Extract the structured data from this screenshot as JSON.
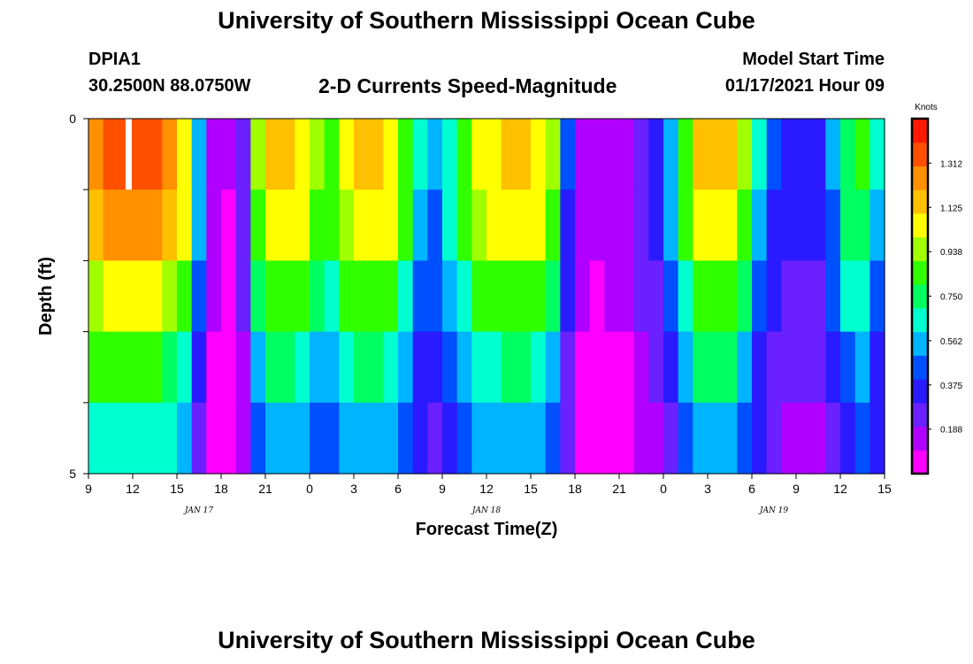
{
  "page": {
    "title_top": "University of Southern Mississippi Ocean Cube",
    "title_bottom": "University of Southern Mississippi Ocean Cube",
    "station_id": "DPIA1",
    "station_coords": "30.2500N 88.0750W",
    "plot_title": "2-D Currents Speed-Magnitude",
    "model_start_label": "Model Start Time",
    "model_start_value": "01/17/2021 Hour 09"
  },
  "colors": {
    "palette": [
      "#ff00ff",
      "#b000ff",
      "#6a20ff",
      "#2a1aff",
      "#0050ff",
      "#00b4ff",
      "#00ffd0",
      "#00ff60",
      "#30ff00",
      "#a0ff00",
      "#ffff00",
      "#ffc000",
      "#ff9000",
      "#ff5000",
      "#ff1a00"
    ]
  },
  "chart_data": {
    "type": "heatmap",
    "title": "2-D Currents Speed-Magnitude",
    "xlabel": "Forecast Time(Z)",
    "ylabel": "Depth (ft)",
    "colorbar_label": "Knots",
    "colorbar_ticks": [
      "1.312",
      "1.125",
      "0.938",
      "0.750",
      "0.562",
      "0.375",
      "0.188"
    ],
    "colorbar_tick_values": [
      1.312,
      1.125,
      0.938,
      0.75,
      0.562,
      0.375,
      0.188
    ],
    "value_range": [
      0,
      1.5
    ],
    "x_hours_range": [
      0,
      54
    ],
    "x_tick_labels": [
      "9",
      "12",
      "15",
      "18",
      "21",
      "0",
      "3",
      "6",
      "9",
      "12",
      "15",
      "18",
      "21",
      "0",
      "3",
      "6",
      "9",
      "12",
      "15"
    ],
    "date_labels": [
      {
        "label": "JAN 17",
        "hour": 7.5
      },
      {
        "label": "JAN 18",
        "hour": 27
      },
      {
        "label": "JAN 19",
        "hour": 46.5
      }
    ],
    "y_tick_labels": [
      "0",
      "5"
    ],
    "ylim": [
      0,
      5
    ],
    "rows": 5,
    "columns": 54,
    "time_profile": [
      1.22,
      1.28,
      1.3,
      1.32,
      1.28,
      1.2,
      1.05,
      0.55,
      0.15,
      0.1,
      0.25,
      0.9,
      1.1,
      1.1,
      1.05,
      0.9,
      0.85,
      1.0,
      1.1,
      1.12,
      1.05,
      0.85,
      0.6,
      0.5,
      0.65,
      0.85,
      1.0,
      1.05,
      1.08,
      1.08,
      1.05,
      0.9,
      0.4,
      0.15,
      0.12,
      0.13,
      0.15,
      0.25,
      0.35,
      0.55,
      0.85,
      1.08,
      1.1,
      1.08,
      0.9,
      0.6,
      0.4,
      0.35,
      0.35,
      0.35,
      0.5,
      0.75,
      0.8,
      0.6
    ],
    "row_factors": [
      1.04,
      0.96,
      0.8,
      0.66,
      0.52
    ],
    "missing_cells": [
      {
        "hour": 2,
        "row": 0
      }
    ]
  }
}
